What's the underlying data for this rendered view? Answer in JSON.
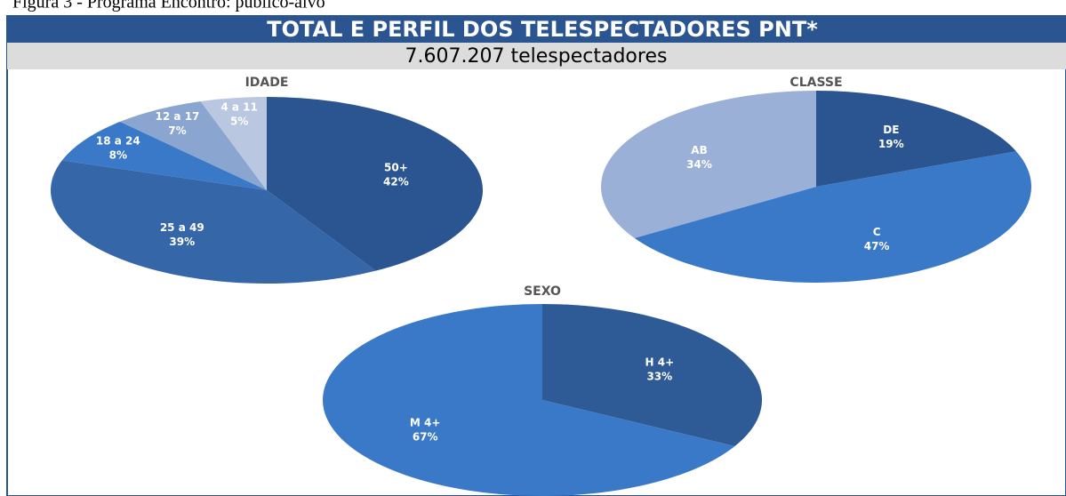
{
  "caption": "Figura 3 - Programa Encontro: público-alvo",
  "header": {
    "title": "TOTAL E PERFIL DOS TELESPECTADORES PNT*",
    "subtitle": "7.607.207 telespectadores"
  },
  "chart_data": [
    {
      "type": "pie",
      "title": "IDADE",
      "categories": [
        "50+",
        "25 a 49",
        "18 a 24",
        "12 a 17",
        "4 a 11"
      ],
      "values": [
        42,
        39,
        8,
        7,
        5
      ],
      "value_labels": [
        "42%",
        "39%",
        "8%",
        "7%",
        "5%"
      ],
      "colors": [
        "#2b5591",
        "#3567a8",
        "#3a78c8",
        "#8aa5cf",
        "#b9c7e0"
      ]
    },
    {
      "type": "pie",
      "title": "CLASSE",
      "categories": [
        "DE",
        "C",
        "AB"
      ],
      "values": [
        19,
        47,
        34
      ],
      "value_labels": [
        "19%",
        "47%",
        "34%"
      ],
      "colors": [
        "#2b5591",
        "#3a78c8",
        "#9ab0d6"
      ]
    },
    {
      "type": "pie",
      "title": "SEXO",
      "categories": [
        "H 4+",
        "M 4+"
      ],
      "values": [
        33,
        67
      ],
      "value_labels": [
        "33%",
        "67%"
      ],
      "colors": [
        "#2e5a96",
        "#3a78c8"
      ]
    }
  ]
}
